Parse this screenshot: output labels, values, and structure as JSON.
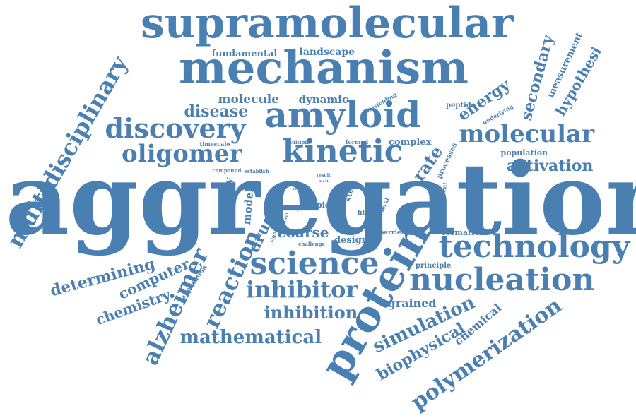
{
  "style": {
    "word_color": "#4a7fb2",
    "background": "#ffffff"
  },
  "words": [
    "aggregation",
    "supramolecular",
    "mechanism",
    "amyloid",
    "kinetic",
    "protein",
    "technology",
    "nucleation",
    "molecular",
    "science",
    "multidisciplinary",
    "discovery",
    "oligomer",
    "inhibitor",
    "polymerization",
    "reaction",
    "alzheimer",
    "mathematical",
    "simulation",
    "biophysical",
    "inhibition",
    "activation",
    "determining",
    "computer",
    "chemistry",
    "coarse",
    "drug",
    "secondary",
    "hypothesi",
    "energy",
    "rate",
    "disease",
    "molecule",
    "dynamic",
    "fundamental",
    "landscape",
    "chemical",
    "grained",
    "model",
    "theory",
    "design",
    "measurement",
    "complex",
    "peptide",
    "population",
    "formation",
    "principle",
    "topic",
    "fibril",
    "step",
    "application",
    "barrier",
    "processes",
    "general",
    "misfolding",
    "underlying",
    "formed",
    "timescale",
    "multiple",
    "compound",
    "establish",
    "result",
    "challenge",
    "signature",
    "experiment",
    "oligomeric",
    "interpret",
    "present",
    "reveal",
    "potent",
    "free",
    "most"
  ]
}
